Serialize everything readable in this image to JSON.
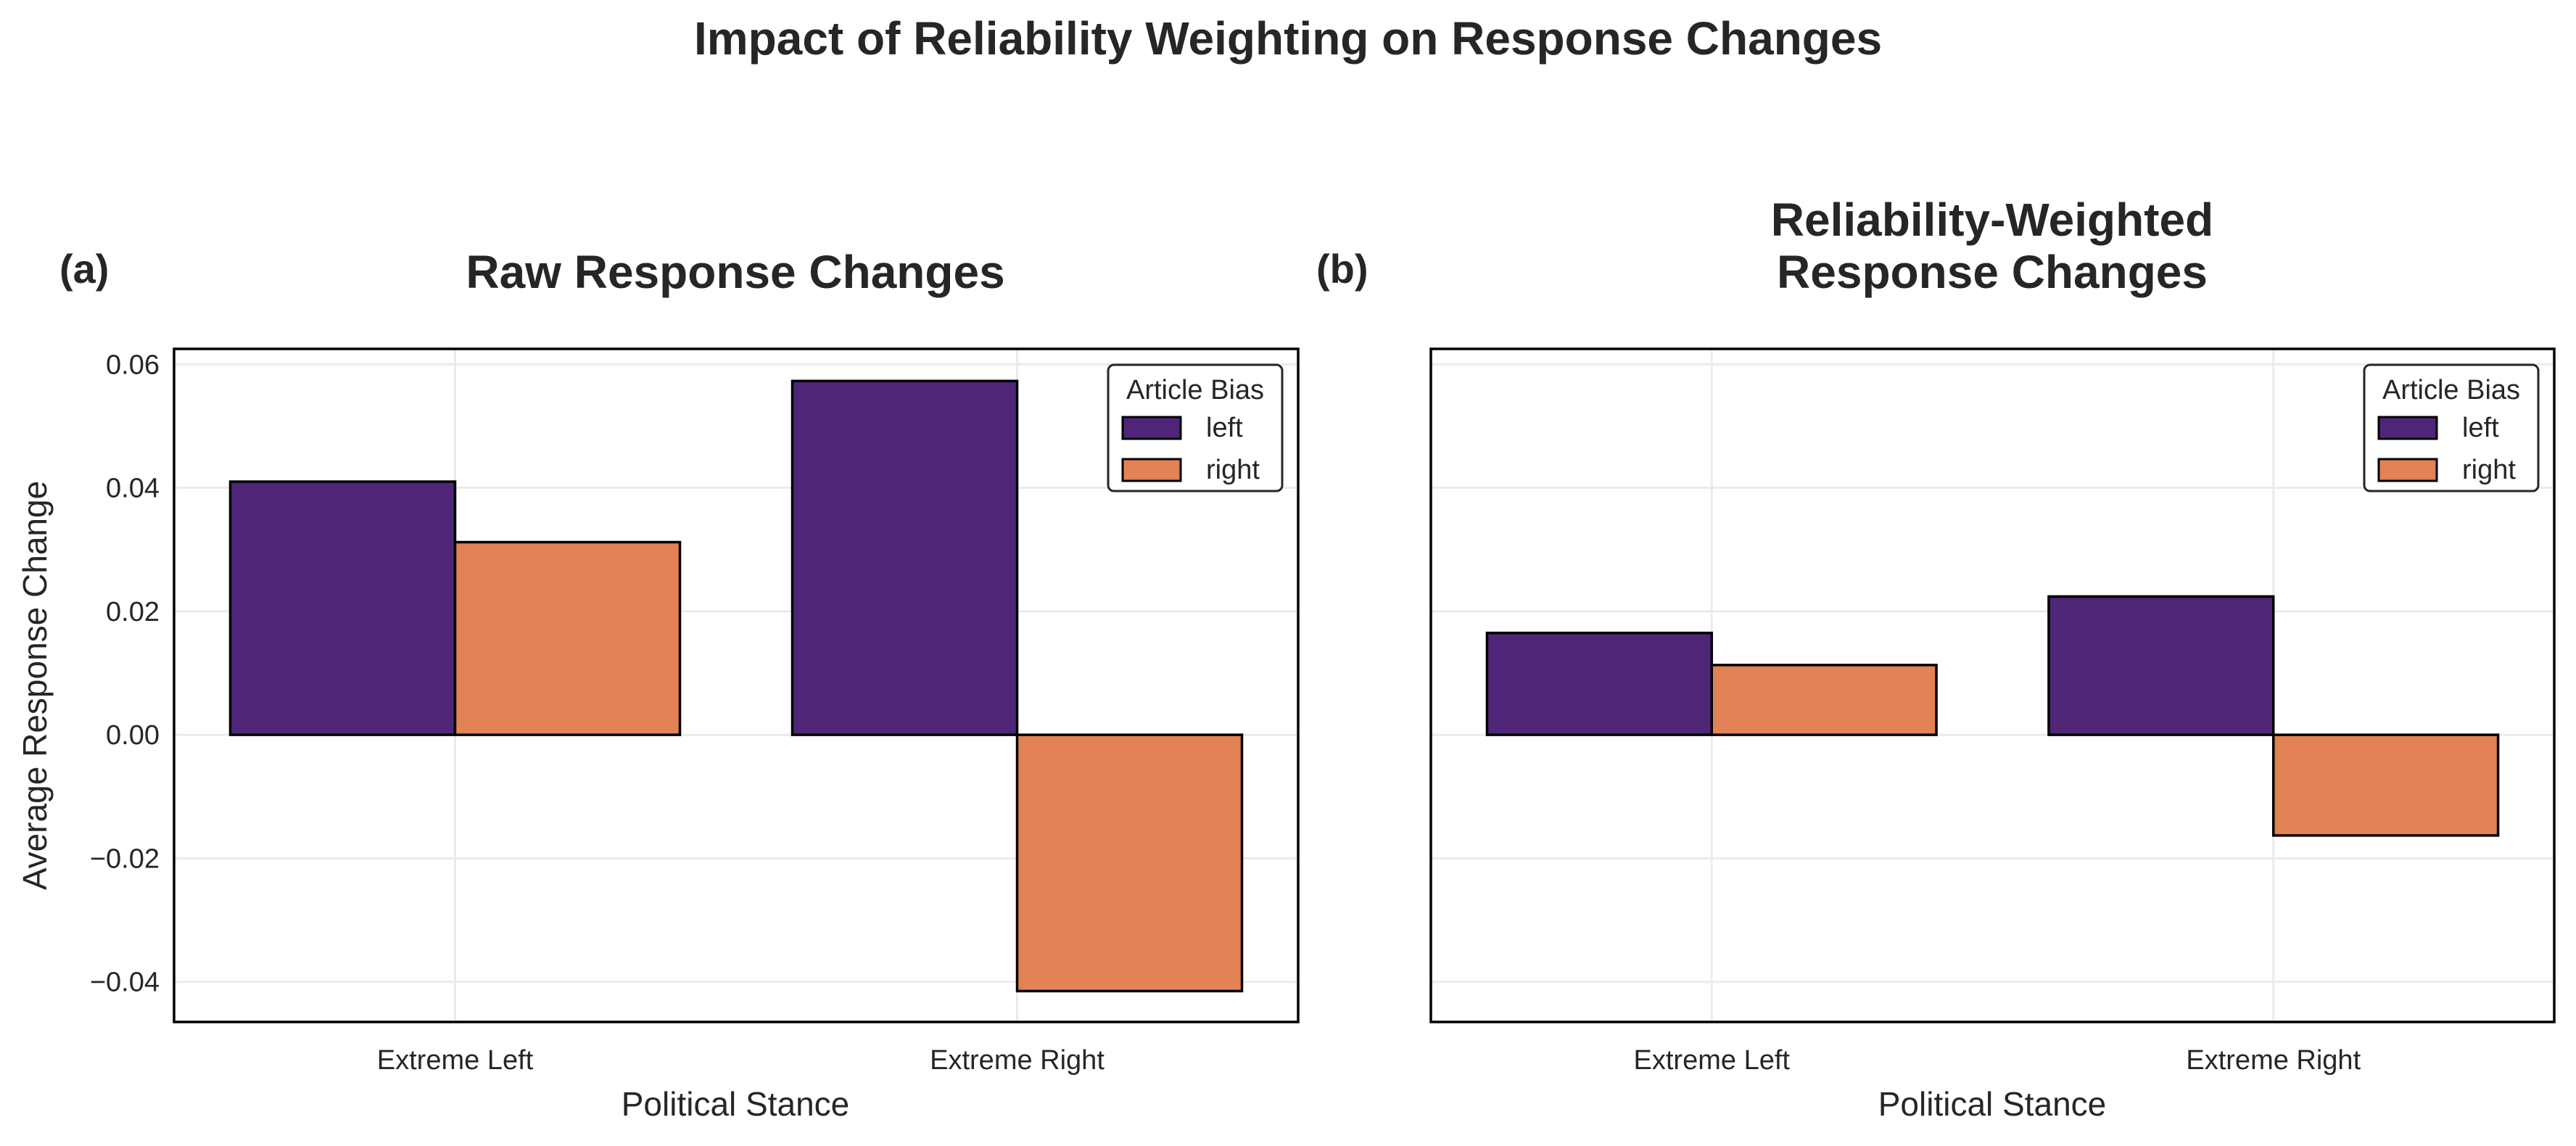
{
  "figure": {
    "title": "Impact of Reliability Weighting on Response Changes",
    "colors": {
      "left": "#4f2578",
      "right": "#e28255"
    }
  },
  "chart_data": [
    {
      "type": "bar",
      "panel": "(a)",
      "title": "Raw Response Changes",
      "xlabel": "Political Stance",
      "ylabel": "Average Response Change",
      "categories": [
        "Extreme Left",
        "Extreme Right"
      ],
      "series": [
        {
          "name": "left",
          "values": [
            0.041,
            0.0573
          ]
        },
        {
          "name": "right",
          "values": [
            0.0312,
            -0.0415
          ]
        }
      ],
      "ylim": [
        -0.0465,
        0.0625
      ],
      "yticks": [
        -0.04,
        -0.02,
        0.0,
        0.02,
        0.04,
        0.06
      ],
      "ytick_labels": [
        "−0.04",
        "−0.02",
        "0.00",
        "0.02",
        "0.04",
        "0.06"
      ],
      "legend": {
        "title": "Article Bias",
        "position": "top-right"
      },
      "grid": true
    },
    {
      "type": "bar",
      "panel": "(b)",
      "title": "Reliability-Weighted Response Changes",
      "title_lines": [
        "Reliability-Weighted",
        "Response Changes"
      ],
      "xlabel": "Political Stance",
      "ylabel": "",
      "categories": [
        "Extreme Left",
        "Extreme Right"
      ],
      "series": [
        {
          "name": "left",
          "values": [
            0.0165,
            0.0224
          ]
        },
        {
          "name": "right",
          "values": [
            0.0113,
            -0.0163
          ]
        }
      ],
      "ylim": [
        -0.0465,
        0.0625
      ],
      "yticks": [
        -0.04,
        -0.02,
        0.0,
        0.02,
        0.04,
        0.06
      ],
      "legend": {
        "title": "Article Bias",
        "position": "top-right"
      },
      "grid": true
    }
  ]
}
